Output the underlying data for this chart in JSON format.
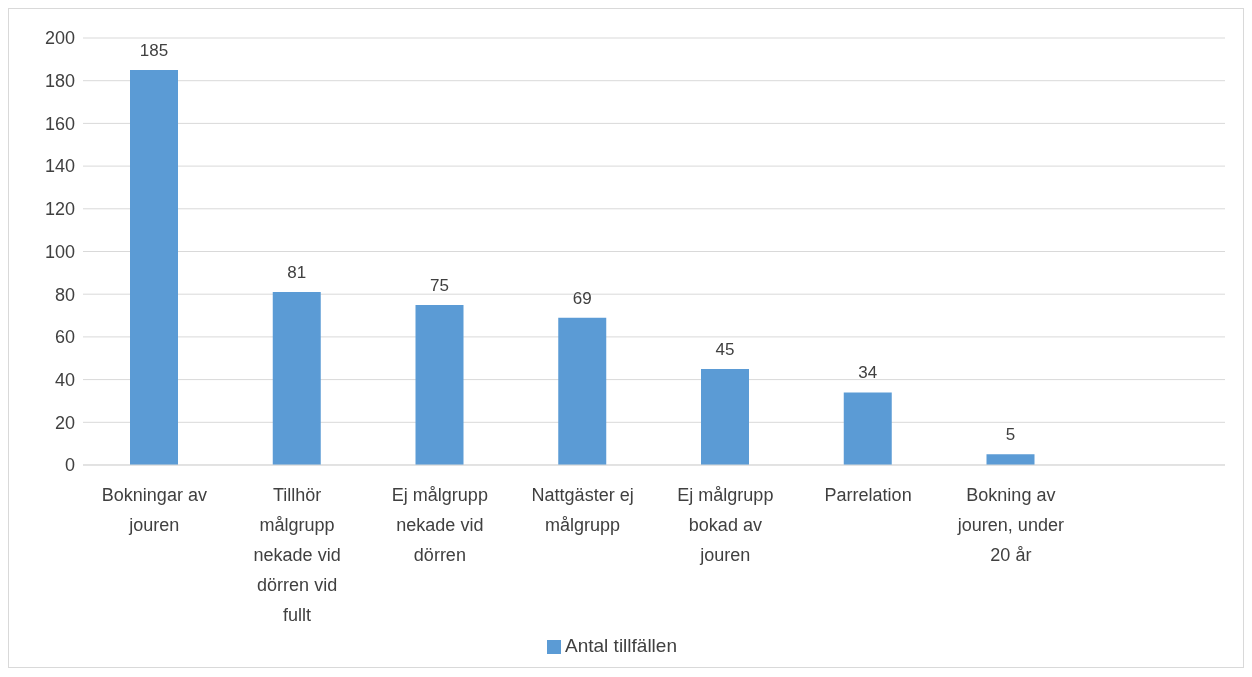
{
  "chart_data": {
    "type": "bar",
    "categories": [
      "Bokningar av jouren",
      "Tillhör målgrupp nekade vid dörren vid fullt",
      "Ej målgrupp nekade vid dörren",
      "Nattgäster ej målgrupp",
      "Ej målgrupp bokad av jouren",
      "Parrelation",
      "Bokning av jouren, under 20 år",
      null
    ],
    "series": [
      {
        "name": "Antal tillfällen",
        "color": "#5b9bd5",
        "values": [
          185,
          81,
          75,
          69,
          45,
          34,
          5,
          null
        ]
      }
    ],
    "ylim": [
      0,
      200
    ],
    "yticks": [
      0,
      20,
      40,
      60,
      80,
      100,
      120,
      140,
      160,
      180,
      200
    ],
    "grid": "y",
    "legend": "bottom",
    "data_labels": true
  }
}
